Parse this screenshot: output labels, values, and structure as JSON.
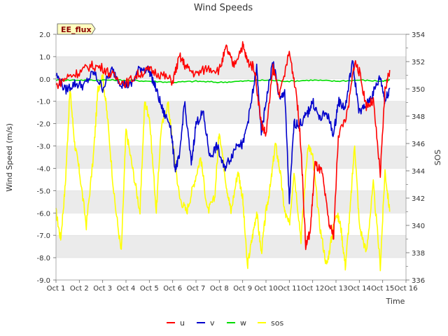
{
  "chart_data": {
    "type": "line",
    "title": "Wind Speeds",
    "badge": "EE_flux",
    "xlabel": "Time",
    "ylabel_left": "Wind Speed (m/s)",
    "ylabel_right": "SOS",
    "xlim": [
      1,
      16
    ],
    "ylim_left": [
      -9,
      2
    ],
    "ylim_right": [
      336,
      354
    ],
    "x_ticks": [
      1,
      2,
      3,
      4,
      5,
      6,
      7,
      8,
      9,
      10,
      11,
      12,
      13,
      14,
      15,
      16
    ],
    "x_tick_labels": [
      "Oct 1",
      "Oct 2",
      "Oct 3",
      "Oct 4",
      "Oct 5",
      "Oct 6",
      "Oct 7",
      "Oct 8",
      "Oct 9",
      "Oct 10",
      "Oct 11",
      "Oct 12",
      "Oct 13",
      "Oct 14",
      "Oct 15",
      "Oct 16"
    ],
    "y_ticks_left": [
      -9,
      -8,
      -7,
      -6,
      -5,
      -4,
      -3,
      -2,
      -1,
      0,
      1,
      2
    ],
    "y_tick_labels_left": [
      "-9.0",
      "-8.0",
      "-7.0",
      "-6.0",
      "-5.0",
      "-4.0",
      "-3.0",
      "-2.0",
      "-1.0",
      "0.0",
      "1.0",
      "2.0"
    ],
    "y_ticks_right": [
      336,
      338,
      340,
      342,
      344,
      346,
      348,
      350,
      352,
      354
    ],
    "y_tick_labels_right": [
      "336",
      "338",
      "340",
      "342",
      "344",
      "346",
      "348",
      "350",
      "352",
      "354"
    ],
    "legend_position": "bottom-center",
    "grid": "horizontal bands",
    "series": [
      {
        "name": "u",
        "axis": "left",
        "color": "#ff0000",
        "x": [
          1.0,
          1.5,
          2.0,
          2.5,
          3.0,
          3.5,
          4.0,
          4.5,
          5.0,
          5.5,
          6.0,
          6.3,
          6.6,
          7.0,
          7.5,
          8.0,
          8.3,
          8.6,
          9.0,
          9.2,
          9.5,
          9.8,
          10.0,
          10.3,
          10.6,
          11.0,
          11.3,
          11.5,
          11.7,
          11.9,
          12.1,
          12.4,
          12.7,
          12.9,
          13.1,
          13.5,
          13.8,
          14.0,
          14.3,
          14.6,
          14.9,
          15.1,
          15.3
        ],
        "values": [
          -0.3,
          0.1,
          0.3,
          0.6,
          0.5,
          0.1,
          -0.2,
          0.2,
          0.4,
          0.2,
          -0.1,
          1.0,
          0.5,
          0.2,
          0.5,
          0.4,
          1.4,
          0.6,
          1.5,
          0.8,
          0.5,
          -2.0,
          -2.5,
          0.5,
          -0.7,
          1.2,
          -0.6,
          -3.0,
          -7.5,
          -6.8,
          -3.8,
          -4.2,
          -6.5,
          -7.0,
          -2.5,
          -1.5,
          0.8,
          0.3,
          -1.2,
          -1.0,
          -4.3,
          -0.5,
          0.4
        ]
      },
      {
        "name": "v",
        "axis": "left",
        "color": "#0000cc",
        "x": [
          1.0,
          1.4,
          1.8,
          2.2,
          2.6,
          3.0,
          3.4,
          3.8,
          4.2,
          4.6,
          5.0,
          5.3,
          5.6,
          5.9,
          6.1,
          6.3,
          6.5,
          6.8,
          7.0,
          7.3,
          7.6,
          7.9,
          8.2,
          8.5,
          8.8,
          9.0,
          9.3,
          9.6,
          9.8,
          10.0,
          10.3,
          10.6,
          10.8,
          11.0,
          11.2,
          11.5,
          11.8,
          12.0,
          12.3,
          12.6,
          12.9,
          13.1,
          13.4,
          13.7,
          14.0,
          14.3,
          14.6,
          14.9,
          15.1,
          15.3
        ],
        "values": [
          0.2,
          -0.5,
          -0.2,
          -0.3,
          0.3,
          -0.4,
          0.4,
          -0.2,
          -0.3,
          0.5,
          0.4,
          -0.5,
          -1.5,
          -2.0,
          -4.0,
          -3.5,
          -1.0,
          -3.8,
          -2.0,
          -1.5,
          -3.5,
          -3.0,
          -4.0,
          -3.5,
          -2.8,
          -3.0,
          -1.5,
          0.5,
          -2.5,
          -1.0,
          0.8,
          -1.0,
          -0.5,
          -5.5,
          -2.0,
          -2.0,
          -1.5,
          -1.0,
          -1.8,
          -1.5,
          -2.5,
          -1.0,
          -1.3,
          0.8,
          -1.5,
          -1.2,
          -0.6,
          0.1,
          -1.0,
          -0.4
        ]
      },
      {
        "name": "w",
        "axis": "left",
        "color": "#00dd00",
        "x": [
          1,
          2,
          3,
          4,
          5,
          6,
          7,
          8,
          9,
          10,
          11,
          12,
          13,
          14,
          15,
          15.3
        ],
        "values": [
          -0.05,
          -0.05,
          -0.05,
          -0.05,
          -0.1,
          -0.15,
          -0.1,
          -0.15,
          -0.1,
          -0.05,
          -0.1,
          -0.05,
          -0.1,
          -0.05,
          -0.1,
          -0.05
        ]
      },
      {
        "name": "sos",
        "axis": "right",
        "color": "#ffff00",
        "x": [
          1.0,
          1.2,
          1.4,
          1.6,
          1.8,
          2.0,
          2.3,
          2.6,
          2.8,
          3.0,
          3.2,
          3.5,
          3.8,
          4.0,
          4.3,
          4.6,
          4.8,
          5.0,
          5.3,
          5.5,
          5.8,
          6.0,
          6.3,
          6.6,
          6.9,
          7.2,
          7.5,
          7.8,
          8.0,
          8.3,
          8.5,
          8.8,
          9.0,
          9.2,
          9.4,
          9.6,
          9.8,
          10.0,
          10.2,
          10.4,
          10.6,
          10.8,
          11.0,
          11.2,
          11.5,
          11.8,
          12.0,
          12.3,
          12.6,
          12.8,
          13.0,
          13.2,
          13.4,
          13.6,
          13.8,
          14.0,
          14.3,
          14.6,
          14.9,
          15.1,
          15.3
        ],
        "values": [
          341,
          339,
          343,
          350,
          346,
          344,
          340,
          345,
          350,
          351,
          348,
          342,
          338,
          347,
          344,
          341,
          349,
          348,
          341,
          347,
          349,
          346,
          342,
          341,
          343,
          345,
          341,
          342,
          347,
          343,
          341,
          344,
          342,
          337,
          339,
          341,
          338,
          341,
          343,
          346,
          344,
          341,
          340,
          344,
          339,
          346,
          345,
          340,
          337,
          339,
          341,
          340,
          337,
          341,
          346,
          340,
          338,
          343,
          337,
          344,
          341
        ]
      }
    ]
  }
}
